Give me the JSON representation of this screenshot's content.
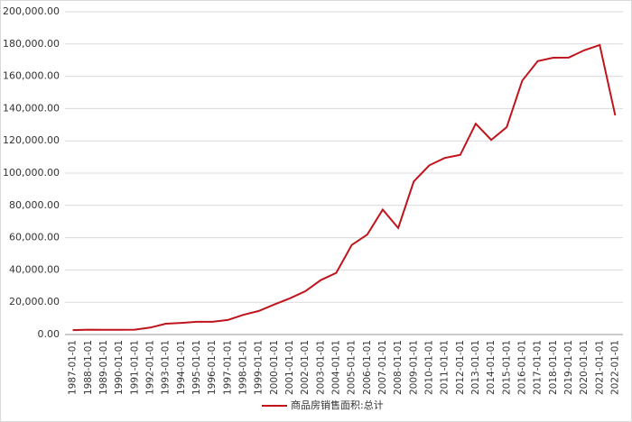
{
  "chart_data": {
    "type": "line",
    "categories": [
      "1987-01-01",
      "1988-01-01",
      "1989-01-01",
      "1990-01-01",
      "1991-01-01",
      "1992-01-01",
      "1993-01-01",
      "1994-01-01",
      "1995-01-01",
      "1996-01-01",
      "1997-01-01",
      "1998-01-01",
      "1999-01-01",
      "2000-01-01",
      "2001-01-01",
      "2002-01-01",
      "2003-01-01",
      "2004-01-01",
      "2005-01-01",
      "2006-01-01",
      "2007-01-01",
      "2008-01-01",
      "2009-01-01",
      "2010-01-01",
      "2011-01-01",
      "2012-01-01",
      "2013-01-01",
      "2014-01-01",
      "2015-01-01",
      "2016-01-01",
      "2017-01-01",
      "2018-01-01",
      "2019-01-01",
      "2020-01-01",
      "2021-01-01",
      "2022-01-01"
    ],
    "series": [
      {
        "name": "商品房销售面积:总计",
        "color": "#c0141c",
        "values": [
          2700,
          3000,
          2900,
          2900,
          3000,
          4300,
          6700,
          7200,
          7900,
          7900,
          9000,
          12200,
          14600,
          18600,
          22400,
          26800,
          33700,
          38200,
          55500,
          61900,
          77400,
          66000,
          94800,
          104800,
          109400,
          111300,
          130600,
          120600,
          128500,
          157300,
          169400,
          171500,
          171600,
          176100,
          179400,
          135800
        ]
      }
    ],
    "ylim": [
      0,
      200000
    ],
    "yticks": [
      {
        "value": 0,
        "label": "0.00"
      },
      {
        "value": 20000,
        "label": "20,000.00"
      },
      {
        "value": 40000,
        "label": "40,000.00"
      },
      {
        "value": 60000,
        "label": "60,000.00"
      },
      {
        "value": 80000,
        "label": "80,000.00"
      },
      {
        "value": 100000,
        "label": "100,000.00"
      },
      {
        "value": 120000,
        "label": "120,000.00"
      },
      {
        "value": 140000,
        "label": "140,000.00"
      },
      {
        "value": 160000,
        "label": "160,000.00"
      },
      {
        "value": 180000,
        "label": "180,000.00"
      },
      {
        "value": 200000,
        "label": "200,000.00"
      }
    ],
    "grid": true,
    "legend": "bottom"
  }
}
